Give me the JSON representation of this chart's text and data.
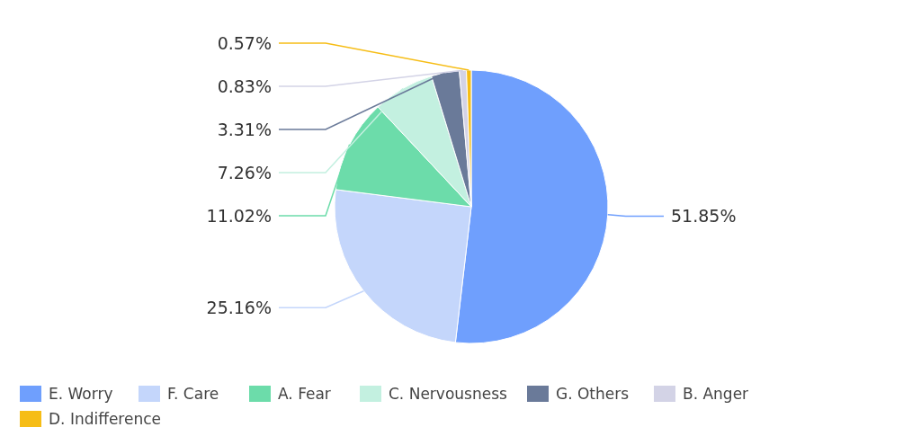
{
  "chart_data": {
    "type": "pie",
    "categories": [
      "E. Worry",
      "F. Care",
      "A. Fear",
      "C. Nervousness",
      "G. Others",
      "B. Anger",
      "D. Indifference"
    ],
    "values": [
      51.85,
      25.16,
      11.02,
      7.26,
      3.31,
      0.83,
      0.57
    ],
    "value_labels": [
      "51.85%",
      "25.16%",
      "11.02%",
      "7.26%",
      "3.31%",
      "0.83%",
      "0.57%"
    ],
    "colors": [
      "#6f9ffd",
      "#c4d6fb",
      "#6cdcaa",
      "#c3f0e0",
      "#6a7a99",
      "#d3d3e6",
      "#f6bd16"
    ],
    "legend": "bottom"
  }
}
